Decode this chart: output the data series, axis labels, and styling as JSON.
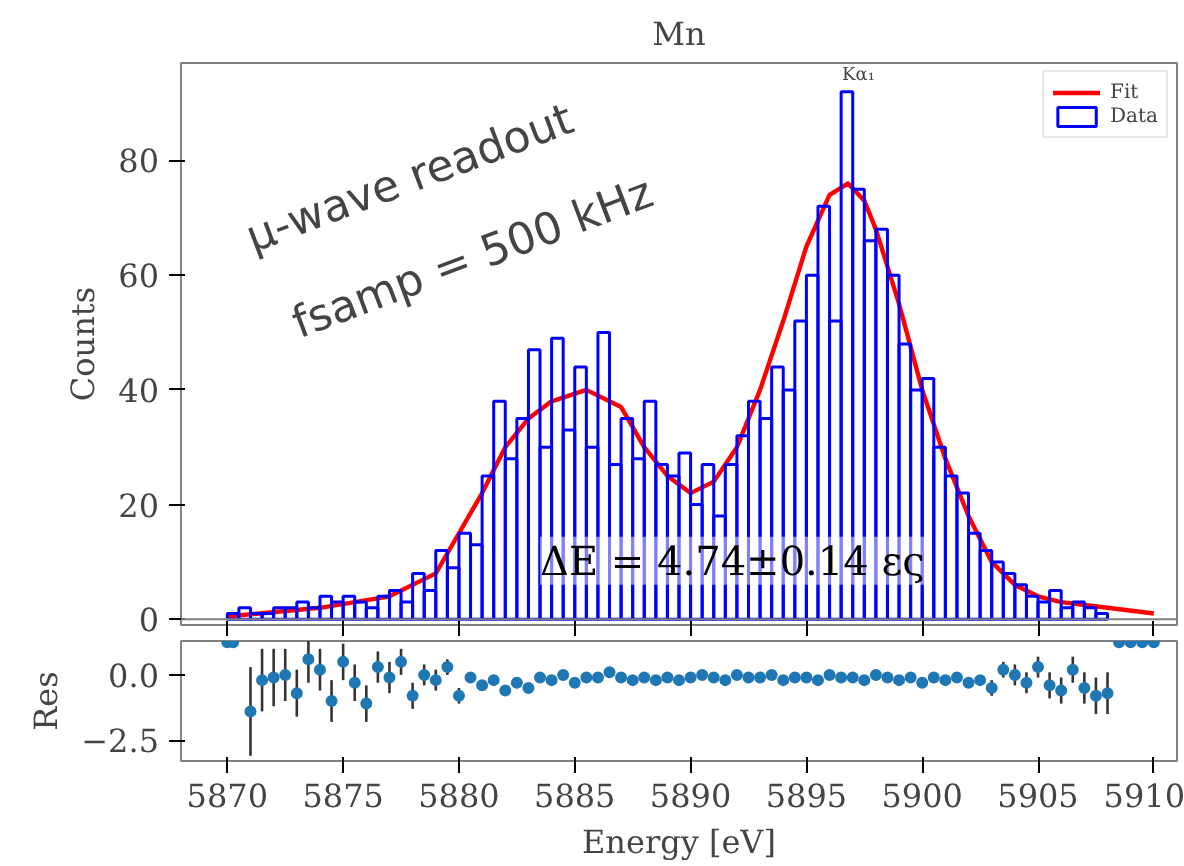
{
  "chart_data": [
    {
      "type": "histogram",
      "title": "Mn",
      "ylabel": "Counts",
      "xlim": [
        5868,
        5911
      ],
      "ylim": [
        -1,
        97
      ],
      "xticks": [
        5870,
        5875,
        5880,
        5885,
        5890,
        5895,
        5900,
        5905,
        5910
      ],
      "yticks": [
        0,
        20,
        40,
        60,
        80
      ],
      "tick_labels": "y",
      "grid": false,
      "legend": "top right",
      "series": [
        {
          "name": "Fit",
          "type": "line",
          "color": "#ff0000",
          "x": [
            5870,
            5874,
            5877,
            5879,
            5880,
            5881,
            5882,
            5883,
            5884,
            5885.5,
            5887,
            5888,
            5889,
            5890,
            5891,
            5892,
            5893,
            5894,
            5895,
            5896,
            5896.8,
            5897.5,
            5898,
            5899,
            5900,
            5901,
            5902,
            5903,
            5904,
            5905,
            5906,
            5908,
            5910
          ],
          "values": [
            0.5,
            2,
            4,
            8,
            15,
            22,
            30,
            35,
            38,
            40,
            37,
            30,
            25,
            22,
            24,
            30,
            40,
            52,
            65,
            74,
            76,
            73,
            68,
            55,
            40,
            28,
            18,
            10,
            6,
            4,
            3,
            2,
            1
          ]
        },
        {
          "name": "Data",
          "type": "histogram",
          "color": "#0000ff",
          "bins": [
            5870,
            5870.5,
            5871,
            5871.5,
            5872,
            5872.5,
            5873,
            5873.5,
            5874,
            5874.5,
            5875,
            5875.5,
            5876,
            5876.5,
            5877,
            5877.5,
            5878,
            5878.5,
            5879,
            5879.5,
            5880,
            5880.5,
            5881,
            5881.5,
            5882,
            5882.5,
            5883,
            5883.5,
            5884,
            5884.5,
            5885,
            5885.5,
            5886,
            5886.5,
            5887,
            5887.5,
            5888,
            5888.5,
            5889,
            5889.5,
            5890,
            5890.5,
            5891,
            5891.5,
            5892,
            5892.5,
            5893,
            5893.5,
            5894,
            5894.5,
            5895,
            5895.5,
            5896,
            5896.5,
            5897,
            5897.5,
            5898,
            5898.5,
            5899,
            5899.5,
            5900,
            5900.5,
            5901,
            5901.5,
            5902,
            5902.5,
            5903,
            5903.5,
            5904,
            5904.5,
            5905,
            5905.5,
            5906,
            5906.5,
            5907,
            5907.5,
            5908
          ],
          "values": [
            1,
            2,
            1,
            1,
            2,
            2,
            3,
            2,
            4,
            3,
            4,
            3,
            2,
            4,
            5,
            3,
            8,
            5,
            12,
            9,
            15,
            13,
            25,
            38,
            28,
            35,
            47,
            30,
            49,
            33,
            44,
            30,
            50,
            27,
            35,
            28,
            38,
            27,
            25,
            29,
            20,
            27,
            18,
            27,
            32,
            38,
            35,
            44,
            40,
            52,
            60,
            72,
            52,
            92,
            75,
            66,
            68,
            60,
            48,
            40,
            42,
            30,
            25,
            22,
            15,
            12,
            10,
            8,
            6,
            4,
            3,
            5,
            2,
            3,
            2,
            1
          ]
        }
      ],
      "ref_lines": [
        {
          "axis": "y",
          "value": 0,
          "color": "#808080"
        }
      ],
      "annotations": [
        {
          "text": "Kα₁",
          "x": 5896.8,
          "y": 92
        },
        "μ-wave readout",
        "fsamp = 500 kHz",
        "ΔE = 4.74±0.14 ες"
      ]
    },
    {
      "type": "scatter",
      "xlabel": "Energy [eV]",
      "ylabel": "Res",
      "xlim": [
        5868,
        5911
      ],
      "ylim": [
        -3.3,
        1.3
      ],
      "xticks": [
        5870,
        5875,
        5880,
        5885,
        5890,
        5895,
        5900,
        5905,
        5910
      ],
      "yticks": [
        {
          "value": 0,
          "label": "0.0"
        },
        {
          "value": -2.5,
          "label": "−2.5"
        }
      ],
      "grid": false,
      "marker": "circle",
      "series": [
        {
          "color": "#1f77b4",
          "x": [
            5870,
            5870.25,
            5871,
            5871.5,
            5872,
            5872.5,
            5873,
            5873.5,
            5874,
            5874.5,
            5875,
            5875.5,
            5876,
            5876.5,
            5877,
            5877.5,
            5878,
            5878.5,
            5879,
            5879.5,
            5880,
            5880.5,
            5881,
            5881.5,
            5882,
            5882.5,
            5883,
            5883.5,
            5884,
            5884.5,
            5885,
            5885.5,
            5886,
            5886.5,
            5887,
            5887.5,
            5888,
            5888.5,
            5889,
            5889.5,
            5890,
            5890.5,
            5891,
            5891.5,
            5892,
            5892.5,
            5893,
            5893.5,
            5894,
            5894.5,
            5895,
            5895.5,
            5896,
            5896.5,
            5897,
            5897.5,
            5898,
            5898.5,
            5899,
            5899.5,
            5900,
            5900.5,
            5901,
            5901.5,
            5902,
            5902.5,
            5903,
            5903.5,
            5904,
            5904.5,
            5905,
            5905.5,
            5906,
            5906.5,
            5907,
            5907.5,
            5908,
            5908.5,
            5909,
            5909.5,
            5910
          ],
          "values": [
            1.25,
            1.25,
            -1.4,
            -0.2,
            -0.1,
            0.0,
            -0.7,
            0.6,
            0.2,
            -1.0,
            0.5,
            -0.3,
            -1.1,
            0.3,
            -0.1,
            0.5,
            -0.8,
            0.0,
            -0.2,
            0.3,
            -0.8,
            -0.1,
            -0.4,
            -0.2,
            -0.6,
            -0.3,
            -0.5,
            -0.1,
            -0.2,
            0.0,
            -0.3,
            -0.1,
            -0.1,
            0.1,
            -0.1,
            -0.2,
            -0.1,
            -0.2,
            -0.1,
            -0.2,
            -0.1,
            0.0,
            -0.1,
            -0.2,
            0.0,
            -0.1,
            -0.1,
            0.0,
            -0.2,
            -0.1,
            -0.1,
            -0.2,
            0.0,
            -0.1,
            -0.1,
            -0.2,
            0.0,
            -0.1,
            -0.2,
            -0.1,
            -0.3,
            -0.1,
            -0.2,
            -0.1,
            -0.3,
            -0.2,
            -0.5,
            0.2,
            0.0,
            -0.3,
            0.3,
            -0.4,
            -0.6,
            0.2,
            -0.5,
            -0.8,
            -0.7,
            1.25,
            1.25,
            1.25,
            1.25
          ],
          "errors": [
            null,
            null,
            1.7,
            1.2,
            1.1,
            1.0,
            0.9,
            0.9,
            0.8,
            0.8,
            0.7,
            0.7,
            0.7,
            0.6,
            0.6,
            0.5,
            0.5,
            0.4,
            0.4,
            0.3,
            0.3,
            null,
            null,
            null,
            null,
            null,
            null,
            null,
            null,
            null,
            null,
            null,
            null,
            null,
            null,
            null,
            null,
            null,
            null,
            null,
            null,
            null,
            null,
            null,
            null,
            null,
            null,
            null,
            null,
            null,
            null,
            null,
            null,
            null,
            null,
            null,
            null,
            null,
            null,
            null,
            null,
            null,
            null,
            null,
            null,
            null,
            0.3,
            0.3,
            0.4,
            0.4,
            0.4,
            0.5,
            0.5,
            0.5,
            0.6,
            0.7,
            0.8,
            null,
            null,
            null,
            null
          ]
        }
      ]
    }
  ]
}
